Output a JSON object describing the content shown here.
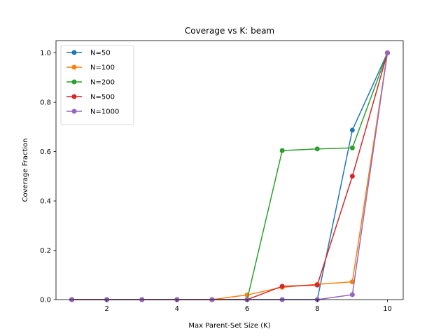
{
  "chart_data": {
    "type": "line",
    "title": "Coverage vs K: beam",
    "xlabel": "Max Parent-Set Size (K)",
    "ylabel": "Coverage Fraction",
    "xlim": [
      0.55,
      10.45
    ],
    "ylim": [
      0,
      1.05
    ],
    "xticks": [
      2,
      4,
      6,
      8,
      10
    ],
    "yticks": [
      0.0,
      0.2,
      0.4,
      0.6,
      0.8,
      1.0
    ],
    "ytick_labels": [
      "0.0",
      "0.2",
      "0.4",
      "0.6",
      "0.8",
      "1.0"
    ],
    "grid": false,
    "legend_position": "top-left",
    "x": [
      1,
      2,
      3,
      4,
      5,
      6,
      7,
      8,
      9,
      10
    ],
    "series": [
      {
        "name": "N=50",
        "color": "#1f77b4",
        "values": [
          0,
          0,
          0,
          0,
          0,
          0,
          0,
          0,
          0.687,
          1.0
        ]
      },
      {
        "name": "N=100",
        "color": "#ff7f0e",
        "values": [
          0,
          0,
          0,
          0,
          0,
          0.019,
          0.05,
          0.062,
          0.072,
          1.0
        ]
      },
      {
        "name": "N=200",
        "color": "#2ca02c",
        "values": [
          0,
          0,
          0,
          0,
          0,
          0,
          0.604,
          0.611,
          0.615,
          1.0
        ]
      },
      {
        "name": "N=500",
        "color": "#d62728",
        "values": [
          0,
          0,
          0,
          0,
          0,
          0,
          0.054,
          0.059,
          0.5,
          1.0
        ]
      },
      {
        "name": "N=1000",
        "color": "#9467bd",
        "values": [
          0,
          0,
          0,
          0,
          0,
          0,
          0,
          0,
          0.02,
          1.0
        ]
      }
    ]
  }
}
